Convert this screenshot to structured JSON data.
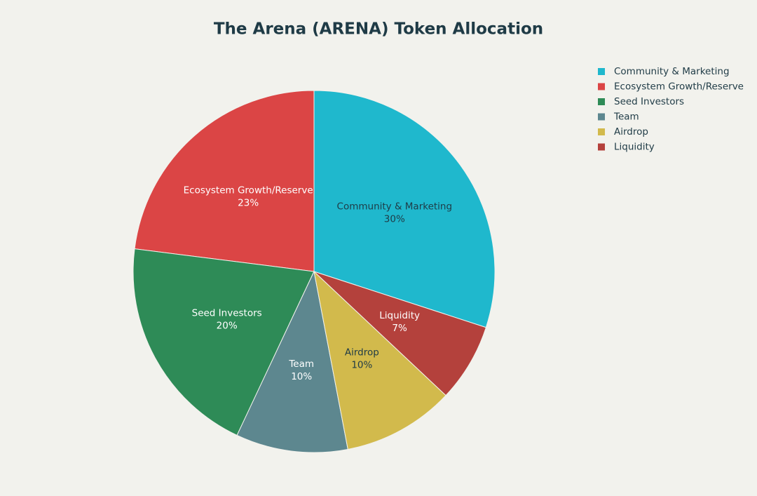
{
  "chart_data": {
    "type": "pie",
    "title": "The Arena (ARENA) Token Allocation",
    "categories": [
      "Community & Marketing",
      "Ecosystem Growth/Reserve",
      "Seed Investors",
      "Team",
      "Airdrop",
      "Liquidity"
    ],
    "values": [
      30,
      23,
      20,
      10,
      10,
      7
    ],
    "value_labels": [
      "30%",
      "23%",
      "20%",
      "10%",
      "10%",
      "7%"
    ],
    "colors": [
      "#1fb8cd",
      "#db4545",
      "#2e8b57",
      "#5d878f",
      "#d2ba4c",
      "#b4413c"
    ],
    "legend": "top-right"
  }
}
